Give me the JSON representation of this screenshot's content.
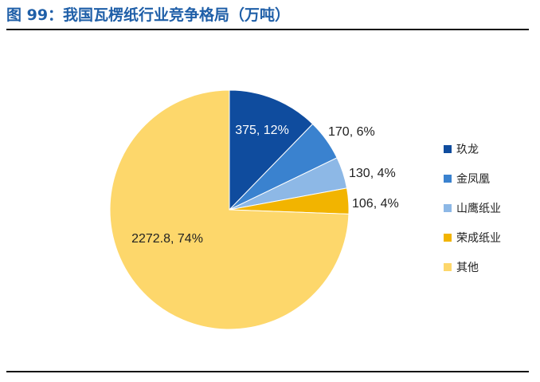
{
  "figure": {
    "title": "图 99：我国瓦楞纸行业竞争格局（万吨）"
  },
  "chart_data": {
    "type": "pie",
    "title": "",
    "unit": "万吨",
    "legend_position": "right",
    "slices": [
      {
        "name": "玖龙",
        "value": 375,
        "label": "375, 12%",
        "color": "#0f4c9e"
      },
      {
        "name": "金凤凰",
        "value": 170,
        "label": "170, 6%",
        "color": "#3a82cf"
      },
      {
        "name": "山鹰纸业",
        "value": 130,
        "label": "130, 4%",
        "color": "#8db8e6"
      },
      {
        "name": "荣成纸业",
        "value": 106,
        "label": "106, 4%",
        "color": "#f2b400"
      },
      {
        "name": "其他",
        "value": 2272.8,
        "label": "2272.8, 74%",
        "color": "#fdd76b"
      }
    ]
  }
}
